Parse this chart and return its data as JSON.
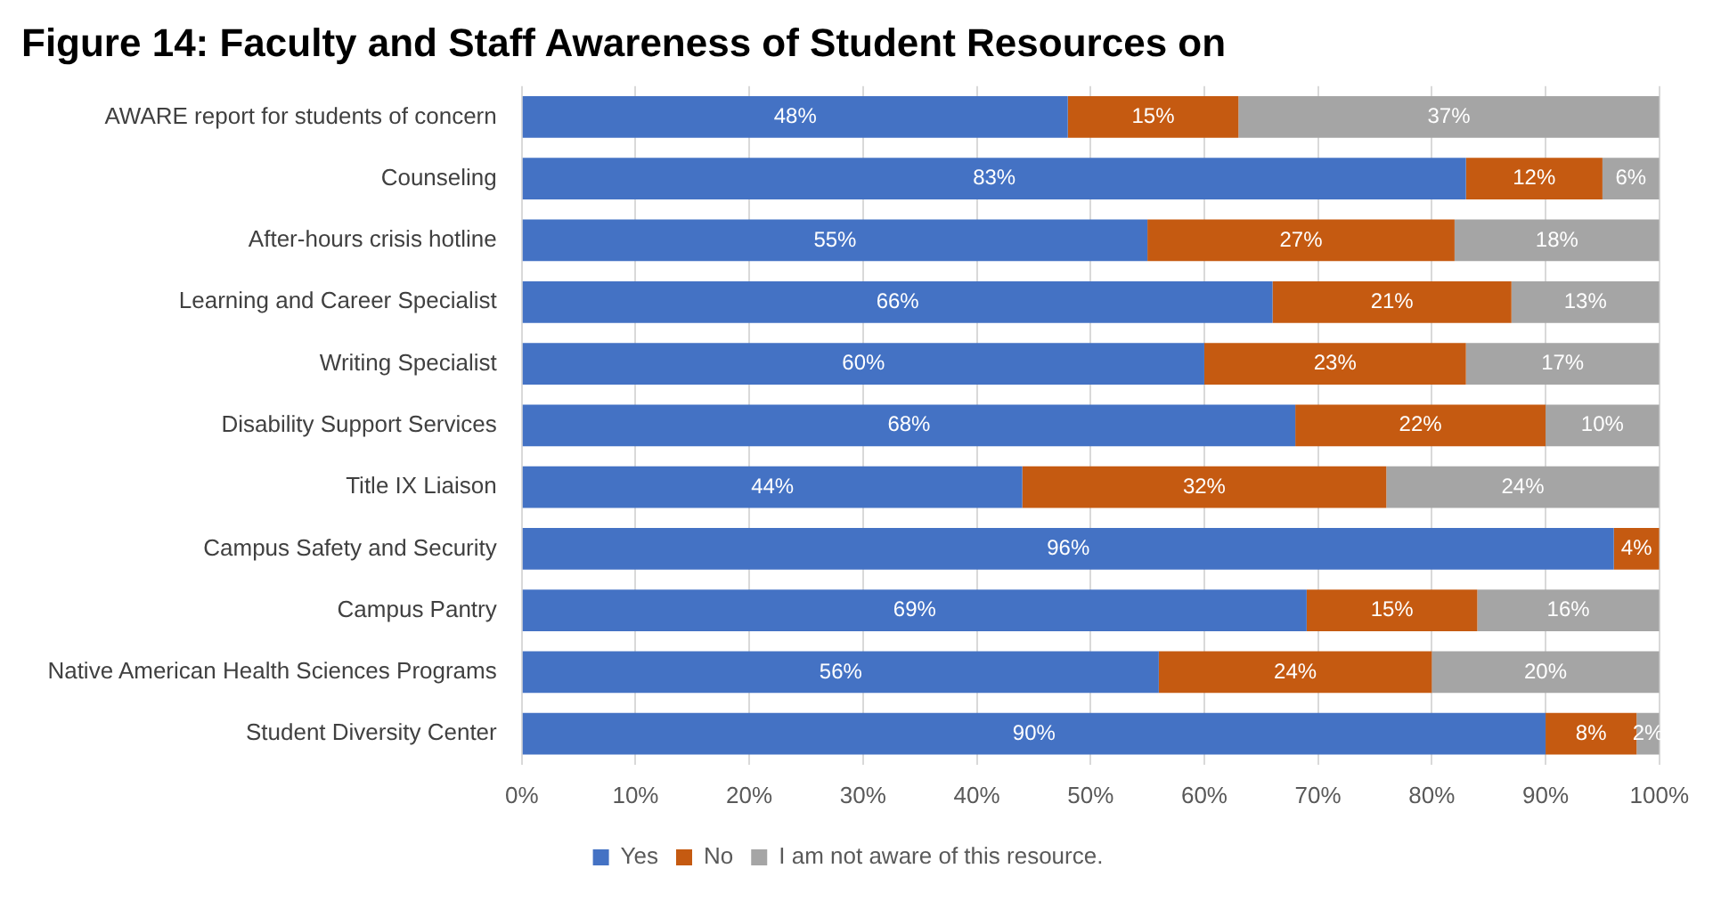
{
  "chart_data": {
    "type": "bar",
    "orientation": "horizontal",
    "stacked": true,
    "title": "Figure 14: Faculty and Staff Awareness of Student Resources on",
    "categories": [
      "AWARE report for students of concern",
      "Counseling",
      "After-hours crisis hotline",
      "Learning and Career Specialist",
      "Writing Specialist",
      "Disability Support Services",
      "Title IX Liaison",
      "Campus Safety and Security",
      "Campus Pantry",
      "Native American Health Sciences Programs",
      "Student Diversity Center"
    ],
    "series": [
      {
        "name": "Yes",
        "color": "#4472c4",
        "values": [
          48,
          83,
          55,
          66,
          60,
          68,
          44,
          96,
          69,
          56,
          90
        ]
      },
      {
        "name": "No",
        "color": "#c55a11",
        "values": [
          15,
          12,
          27,
          21,
          23,
          22,
          32,
          4,
          15,
          24,
          8
        ]
      },
      {
        "name": "I am not aware of this resource.",
        "color": "#a5a5a5",
        "values": [
          37,
          5,
          18,
          13,
          17,
          10,
          24,
          0,
          16,
          20,
          2
        ]
      }
    ],
    "xlim": [
      0,
      100
    ],
    "xticks": [
      {
        "value": 0,
        "label": "0%"
      },
      {
        "value": 10,
        "label": "10%"
      },
      {
        "value": 20,
        "label": "20%"
      },
      {
        "value": 30,
        "label": "30%"
      },
      {
        "value": 40,
        "label": "40%"
      },
      {
        "value": 50,
        "label": "50%"
      },
      {
        "value": 60,
        "label": "60%"
      },
      {
        "value": 70,
        "label": "70%"
      },
      {
        "value": 80,
        "label": "80%"
      },
      {
        "value": 90,
        "label": "90%"
      },
      {
        "value": 100,
        "label": "100%"
      }
    ],
    "value_labels": [
      [
        "48%",
        "83%",
        "55%",
        "66%",
        "60%",
        "68%",
        "44%",
        "96%",
        "69%",
        "56%",
        "90%"
      ],
      [
        "15%",
        "12%",
        "27%",
        "21%",
        "23%",
        "22%",
        "32%",
        "4%",
        "15%",
        "24%",
        "8%"
      ],
      [
        "37%",
        "6%",
        "18%",
        "13%",
        "17%",
        "10%",
        "24%",
        null,
        "16%",
        "20%",
        "2%"
      ]
    ],
    "grid": "x",
    "legend": "bottom"
  }
}
